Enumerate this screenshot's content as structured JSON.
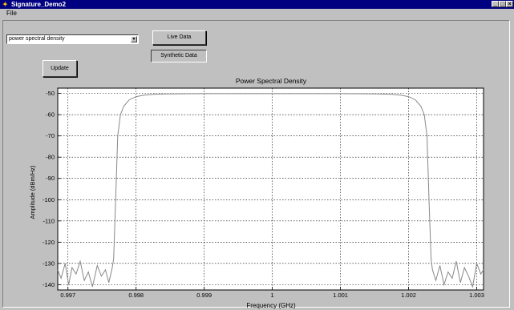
{
  "window": {
    "title": "Signature_Demo2",
    "controls": [
      "_",
      "□",
      "×"
    ]
  },
  "menu": {
    "items": [
      "File"
    ]
  },
  "controls": {
    "dropdown_value": "power spectral density",
    "live_data_label": "Live Data",
    "synthetic_data_label": "Synthetic Data",
    "update_label": "Update"
  },
  "chart_data": {
    "type": "line",
    "title": "Power Spectral Density",
    "xlabel": "Frequency (GHz)",
    "ylabel": "Amplitude (dBm/Hz)",
    "xlim": [
      0.99685,
      1.0031
    ],
    "ylim": [
      -142.5,
      -47.5
    ],
    "xticks": [
      0.997,
      0.998,
      0.999,
      1,
      1.001,
      1.002,
      1.003
    ],
    "xtick_labels": [
      "0.997",
      "0.998",
      "0.999",
      "1",
      "1.001",
      "1.002",
      "1.003"
    ],
    "yticks": [
      -50,
      -60,
      -70,
      -80,
      -90,
      -100,
      -110,
      -120,
      -130,
      -140
    ],
    "ytick_labels": [
      "-50",
      "-60",
      "-70",
      "-80",
      "-90",
      "-100",
      "-110",
      "-120",
      "-130",
      "-140"
    ],
    "grid": true,
    "series": [
      {
        "color": "#888888",
        "x": [
          0.99685,
          0.9969,
          0.99696,
          0.99701,
          0.99706,
          0.99712,
          0.99718,
          0.99724,
          0.9973,
          0.99736,
          0.99743,
          0.99749,
          0.99755,
          0.9976,
          0.99765,
          0.99767,
          0.9977,
          0.99773,
          0.99777,
          0.99782,
          0.9979,
          0.998,
          0.99812,
          0.99825,
          0.99845,
          0.999,
          1.0,
          1.001,
          1.00155,
          1.00175,
          1.00188,
          1.002,
          1.0021,
          1.00218,
          1.00223,
          1.00227,
          1.0023,
          1.00233,
          1.00235,
          1.0024,
          1.00246,
          1.00252,
          1.00258,
          1.00264,
          1.0027,
          1.00276,
          1.00282,
          1.00288,
          1.00294,
          1.003,
          1.00306,
          1.0031
        ],
        "y": [
          -133,
          -137,
          -130,
          -140,
          -132,
          -135,
          -129,
          -138,
          -134,
          -141,
          -131,
          -136,
          -133,
          -139,
          -132,
          -128,
          -100,
          -70,
          -60,
          -56,
          -53,
          -51.5,
          -50.8,
          -50.4,
          -50.2,
          -50.1,
          -50.1,
          -50.1,
          -50.2,
          -50.4,
          -50.8,
          -51.5,
          -53,
          -56,
          -60,
          -70,
          -100,
          -128,
          -133,
          -138,
          -131,
          -140,
          -134,
          -137,
          -129,
          -139,
          -132,
          -136,
          -141,
          -130,
          -135,
          -133
        ]
      }
    ]
  }
}
